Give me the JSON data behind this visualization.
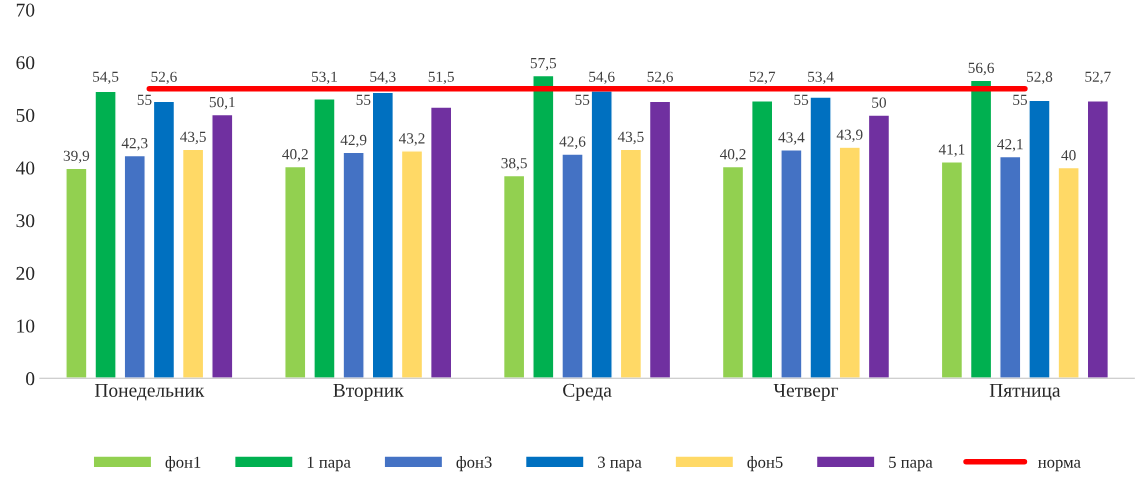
{
  "chart_data": {
    "type": "bar",
    "categories": [
      "Понедельник",
      "Вторник",
      "Среда",
      "Четверг",
      "Пятница"
    ],
    "series": [
      {
        "name": "фон1",
        "color": "#92d050",
        "values": [
          39.9,
          40.2,
          38.5,
          40.2,
          41.1
        ],
        "value_labels": [
          "39,9",
          "40,2",
          "38,5",
          "40,2",
          "41,1"
        ]
      },
      {
        "name": "1 пара",
        "color": "#00b050",
        "values": [
          54.5,
          53.1,
          57.5,
          52.7,
          56.6
        ],
        "value_labels": [
          "54,5",
          "53,1",
          "57,5",
          "52,7",
          "56,6"
        ]
      },
      {
        "name": "фон3",
        "color": "#4472c4",
        "values": [
          42.3,
          42.9,
          42.6,
          43.4,
          42.1
        ],
        "value_labels": [
          "42,3",
          "42,9",
          "42,6",
          "43,4",
          "42,1"
        ]
      },
      {
        "name": "3 пара",
        "color": "#0070c0",
        "values": [
          52.6,
          54.3,
          54.6,
          53.4,
          52.8
        ],
        "value_labels": [
          "52,6",
          "54,3",
          "54,6",
          "53,4",
          "52,8"
        ]
      },
      {
        "name": "фон5",
        "color": "#ffd966",
        "values": [
          43.5,
          43.2,
          43.5,
          43.9,
          40
        ],
        "value_labels": [
          "43,5",
          "43,2",
          "43,5",
          "43,9",
          "40"
        ]
      },
      {
        "name": "5 пара",
        "color": "#7030a0",
        "values": [
          50.1,
          51.5,
          52.6,
          50,
          52.7
        ],
        "value_labels": [
          "50,1",
          "51,5",
          "52,6",
          "50",
          "52,7"
        ]
      },
      {
        "name": "норма",
        "color": "#ff0000",
        "type": "line",
        "values": [
          55,
          55,
          55,
          55,
          55
        ],
        "value_labels": [
          "55",
          "55",
          "55",
          "55",
          "55"
        ]
      }
    ],
    "ylim": [
      0,
      70
    ],
    "yticks": [
      0,
      10,
      20,
      30,
      40,
      50,
      60,
      70
    ],
    "grid": false,
    "legend": "bottom"
  }
}
